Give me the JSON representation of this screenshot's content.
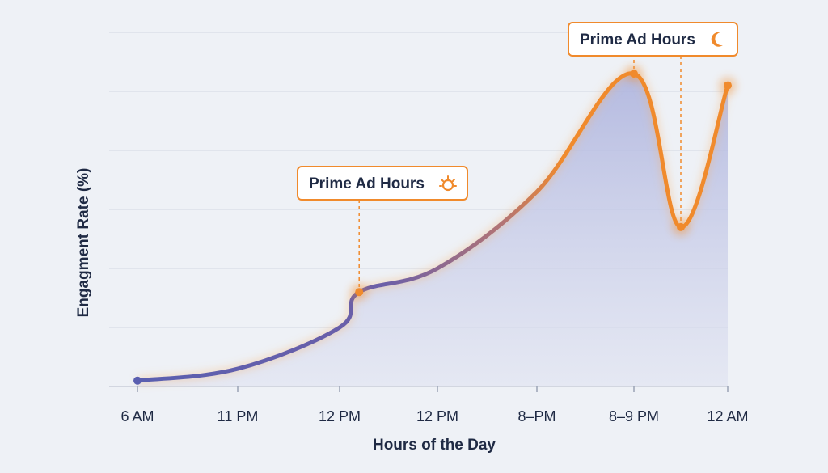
{
  "chart_data": {
    "type": "area",
    "title": "",
    "xlabel": "Hours of the Day",
    "ylabel": "Engagment Rate (%)",
    "categories": [
      "6 AM",
      "11 PM",
      "12 PM",
      "12 PM",
      "8–PM",
      "8–9 PM",
      "12 AM"
    ],
    "x": [
      0,
      1,
      2,
      2.2,
      3,
      4,
      5,
      5.5,
      6
    ],
    "y": [
      1,
      3,
      10,
      16,
      20,
      33,
      53,
      27,
      51
    ],
    "ylim": [
      0,
      60
    ],
    "grid": true,
    "annotations": [
      {
        "text": "Prime Ad Hours",
        "icon": "sun-icon",
        "x": 2.2
      },
      {
        "text": "Prime Ad Hours",
        "icon": "moon-icon",
        "x": 5.5
      }
    ],
    "colors": {
      "start": "#5a5fb0",
      "end": "#f08a2c",
      "fill": "#b9bfe0",
      "grid": "#d3d8e2"
    }
  }
}
